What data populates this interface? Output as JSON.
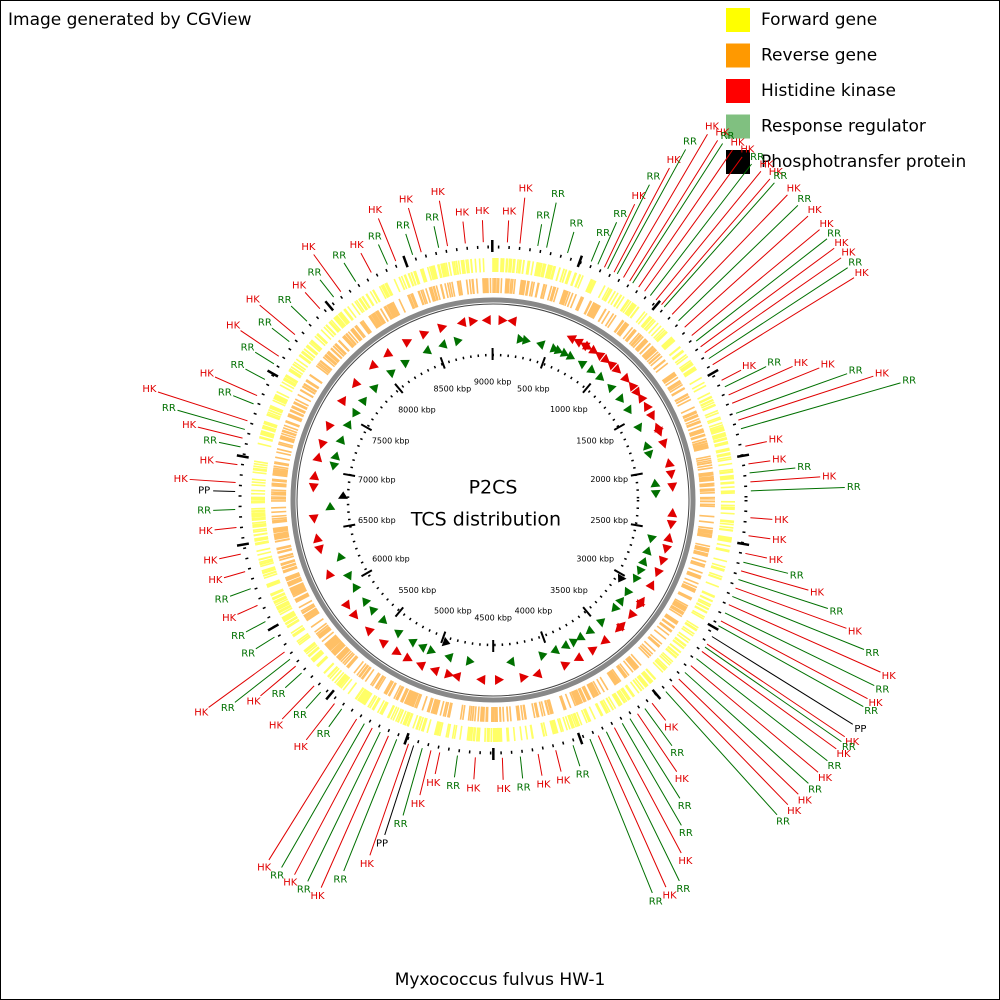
{
  "header": {
    "credit": "Image generated by CGView"
  },
  "legend": [
    {
      "label": "Forward gene",
      "color": "#ffff00"
    },
    {
      "label": "Reverse gene",
      "color": "#ff9900"
    },
    {
      "label": "Histidine kinase",
      "color": "#ff0000"
    },
    {
      "label": "Response regulator",
      "color": "#80c080"
    },
    {
      "label": "Phosphotransfer protein",
      "color": "#000000"
    }
  ],
  "center": {
    "title": "P2CS",
    "subtitle": "TCS distribution"
  },
  "caption": "Myxococcus fulvus HW-1",
  "genome_length_kbp": 9004,
  "ticks": [
    {
      "value": 500,
      "label": "500 kbp"
    },
    {
      "value": 1000,
      "label": "1000 kbp"
    },
    {
      "value": 1500,
      "label": "1500 kbp"
    },
    {
      "value": 2000,
      "label": "2000 kbp"
    },
    {
      "value": 2500,
      "label": "2500 kbp"
    },
    {
      "value": 3000,
      "label": "3000 kbp"
    },
    {
      "value": 3500,
      "label": "3500 kbp"
    },
    {
      "value": 4000,
      "label": "4000 kbp"
    },
    {
      "value": 4500,
      "label": "4500 kbp"
    },
    {
      "value": 5000,
      "label": "5000 kbp"
    },
    {
      "value": 5500,
      "label": "5500 kbp"
    },
    {
      "value": 6000,
      "label": "6000 kbp"
    },
    {
      "value": 6500,
      "label": "6500 kbp"
    },
    {
      "value": 7000,
      "label": "7000 kbp"
    },
    {
      "value": 7500,
      "label": "7500 kbp"
    },
    {
      "value": 8000,
      "label": "8000 kbp"
    },
    {
      "value": 8500,
      "label": "8500 kbp"
    },
    {
      "value": 9000,
      "label": "9000 kbp"
    }
  ],
  "features": [
    {
      "label": "HK",
      "kbp": 80,
      "strand": 1,
      "color": "#e00000"
    },
    {
      "label": "HK",
      "kbp": 150,
      "strand": -1,
      "color": "#e00000"
    },
    {
      "label": "RR",
      "kbp": 250,
      "strand": 1,
      "color": "#007000"
    },
    {
      "label": "RR",
      "kbp": 300,
      "strand": 1,
      "color": "#007000"
    },
    {
      "label": "RR",
      "kbp": 420,
      "strand": -1,
      "color": "#007000"
    },
    {
      "label": "RR",
      "kbp": 560,
      "strand": 1,
      "color": "#007000"
    },
    {
      "label": "RR",
      "kbp": 600,
      "strand": 1,
      "color": "#007000"
    },
    {
      "label": "HK",
      "kbp": 640,
      "strand": -1,
      "color": "#e00000"
    },
    {
      "label": "RR",
      "kbp": 660,
      "strand": 1,
      "color": "#007000"
    },
    {
      "label": "HK",
      "kbp": 700,
      "strand": -1,
      "color": "#e00000"
    },
    {
      "label": "RR",
      "kbp": 720,
      "strand": 1,
      "color": "#007000"
    },
    {
      "label": "HK",
      "kbp": 760,
      "strand": -1,
      "color": "#e00000"
    },
    {
      "label": "HK",
      "kbp": 800,
      "strand": 1,
      "color": "#e00000"
    },
    {
      "label": "RR",
      "kbp": 820,
      "strand": -1,
      "color": "#007000"
    },
    {
      "label": "HK",
      "kbp": 860,
      "strand": 1,
      "color": "#e00000"
    },
    {
      "label": "HK",
      "kbp": 900,
      "strand": -1,
      "color": "#e00000"
    },
    {
      "label": "RR",
      "kbp": 940,
      "strand": 1,
      "color": "#007000"
    },
    {
      "label": "HK",
      "kbp": 980,
      "strand": 1,
      "color": "#e00000"
    },
    {
      "label": "HK",
      "kbp": 1020,
      "strand": -1,
      "color": "#e00000"
    },
    {
      "label": "RR",
      "kbp": 1040,
      "strand": 1,
      "color": "#007000"
    },
    {
      "label": "HK",
      "kbp": 1100,
      "strand": 1,
      "color": "#e00000"
    },
    {
      "label": "RR",
      "kbp": 1150,
      "strand": -1,
      "color": "#007000"
    },
    {
      "label": "HK",
      "kbp": 1200,
      "strand": 1,
      "color": "#e00000"
    },
    {
      "label": "HK",
      "kbp": 1260,
      "strand": -1,
      "color": "#e00000"
    },
    {
      "label": "RR",
      "kbp": 1300,
      "strand": 1,
      "color": "#007000"
    },
    {
      "label": "HK",
      "kbp": 1340,
      "strand": 1,
      "color": "#e00000"
    },
    {
      "label": "HK",
      "kbp": 1380,
      "strand": -1,
      "color": "#e00000"
    },
    {
      "label": "RR",
      "kbp": 1420,
      "strand": 1,
      "color": "#007000"
    },
    {
      "label": "HK",
      "kbp": 1460,
      "strand": -1,
      "color": "#e00000"
    },
    {
      "label": "HK",
      "kbp": 1560,
      "strand": 1,
      "color": "#e00000"
    },
    {
      "label": "RR",
      "kbp": 1600,
      "strand": 1,
      "color": "#007000"
    },
    {
      "label": "HK",
      "kbp": 1650,
      "strand": -1,
      "color": "#e00000"
    },
    {
      "label": "HK",
      "kbp": 1700,
      "strand": 1,
      "color": "#e00000"
    },
    {
      "label": "RR",
      "kbp": 1760,
      "strand": -1,
      "color": "#007000"
    },
    {
      "label": "HK",
      "kbp": 1800,
      "strand": 1,
      "color": "#e00000"
    },
    {
      "label": "RR",
      "kbp": 1850,
      "strand": 1,
      "color": "#007000"
    },
    {
      "label": "HK",
      "kbp": 1950,
      "strand": -1,
      "color": "#e00000"
    },
    {
      "label": "HK",
      "kbp": 2050,
      "strand": 1,
      "color": "#e00000"
    },
    {
      "label": "RR",
      "kbp": 2100,
      "strand": -1,
      "color": "#007000"
    },
    {
      "label": "HK",
      "kbp": 2150,
      "strand": 1,
      "color": "#e00000"
    },
    {
      "label": "RR",
      "kbp": 2200,
      "strand": 1,
      "color": "#007000"
    },
    {
      "label": "HK",
      "kbp": 2350,
      "strand": -1,
      "color": "#e00000"
    },
    {
      "label": "HK",
      "kbp": 2450,
      "strand": 1,
      "color": "#e00000"
    },
    {
      "label": "HK",
      "kbp": 2550,
      "strand": -1,
      "color": "#e00000"
    },
    {
      "label": "RR",
      "kbp": 2600,
      "strand": 1,
      "color": "#007000"
    },
    {
      "label": "HK",
      "kbp": 2650,
      "strand": 1,
      "color": "#e00000"
    },
    {
      "label": "RR",
      "kbp": 2700,
      "strand": -1,
      "color": "#007000"
    },
    {
      "label": "HK",
      "kbp": 2750,
      "strand": 1,
      "color": "#e00000"
    },
    {
      "label": "RR",
      "kbp": 2800,
      "strand": -1,
      "color": "#007000"
    },
    {
      "label": "HK",
      "kbp": 2850,
      "strand": 1,
      "color": "#e00000"
    },
    {
      "label": "RR",
      "kbp": 2900,
      "strand": 1,
      "color": "#007000"
    },
    {
      "label": "HK",
      "kbp": 2950,
      "strand": -1,
      "color": "#e00000"
    },
    {
      "label": "RR",
      "kbp": 2980,
      "strand": 1,
      "color": "#007000"
    },
    {
      "label": "PP",
      "kbp": 3050,
      "strand": 1,
      "color": "#000000"
    },
    {
      "label": "HK",
      "kbp": 3100,
      "strand": -1,
      "color": "#e00000"
    },
    {
      "label": "RR",
      "kbp": 3120,
      "strand": 1,
      "color": "#007000"
    },
    {
      "label": "HK",
      "kbp": 3150,
      "strand": 1,
      "color": "#e00000"
    },
    {
      "label": "RR",
      "kbp": 3200,
      "strand": -1,
      "color": "#007000"
    },
    {
      "label": "HK",
      "kbp": 3250,
      "strand": 1,
      "color": "#e00000"
    },
    {
      "label": "RR",
      "kbp": 3300,
      "strand": 1,
      "color": "#007000"
    },
    {
      "label": "HK",
      "kbp": 3350,
      "strand": -1,
      "color": "#e00000"
    },
    {
      "label": "HK",
      "kbp": 3400,
      "strand": 1,
      "color": "#e00000"
    },
    {
      "label": "RR",
      "kbp": 3450,
      "strand": -1,
      "color": "#007000"
    },
    {
      "label": "HK",
      "kbp": 3550,
      "strand": 1,
      "color": "#e00000"
    },
    {
      "label": "RR",
      "kbp": 3600,
      "strand": 1,
      "color": "#007000"
    },
    {
      "label": "HK",
      "kbp": 3650,
      "strand": -1,
      "color": "#e00000"
    },
    {
      "label": "RR",
      "kbp": 3700,
      "strand": 1,
      "color": "#007000"
    },
    {
      "label": "RR",
      "kbp": 3750,
      "strand": -1,
      "color": "#007000"
    },
    {
      "label": "HK",
      "kbp": 3800,
      "strand": 1,
      "color": "#e00000"
    },
    {
      "label": "RR",
      "kbp": 3850,
      "strand": 1,
      "color": "#007000"
    },
    {
      "label": "HK",
      "kbp": 3900,
      "strand": -1,
      "color": "#e00000"
    },
    {
      "label": "RR",
      "kbp": 3950,
      "strand": 1,
      "color": "#007000"
    },
    {
      "label": "RR",
      "kbp": 4050,
      "strand": -1,
      "color": "#007000"
    },
    {
      "label": "HK",
      "kbp": 4150,
      "strand": 1,
      "color": "#e00000"
    },
    {
      "label": "HK",
      "kbp": 4250,
      "strand": -1,
      "color": "#e00000"
    },
    {
      "label": "RR",
      "kbp": 4350,
      "strand": 1,
      "color": "#007000"
    },
    {
      "label": "HK",
      "kbp": 4450,
      "strand": -1,
      "color": "#e00000"
    },
    {
      "label": "HK",
      "kbp": 4600,
      "strand": 1,
      "color": "#e00000"
    },
    {
      "label": "RR",
      "kbp": 4700,
      "strand": -1,
      "color": "#007000"
    },
    {
      "label": "HK",
      "kbp": 4800,
      "strand": 1,
      "color": "#e00000"
    },
    {
      "label": "HK",
      "kbp": 4850,
      "strand": -1,
      "color": "#e00000"
    },
    {
      "label": "RR",
      "kbp": 4900,
      "strand": 1,
      "color": "#007000"
    },
    {
      "label": "PP",
      "kbp": 4950,
      "strand": -1,
      "color": "#000000"
    },
    {
      "label": "HK",
      "kbp": 4980,
      "strand": 1,
      "color": "#e00000"
    },
    {
      "label": "RR",
      "kbp": 5050,
      "strand": -1,
      "color": "#007000"
    },
    {
      "label": "HK",
      "kbp": 5100,
      "strand": 1,
      "color": "#e00000"
    },
    {
      "label": "RR",
      "kbp": 5150,
      "strand": 1,
      "color": "#007000"
    },
    {
      "label": "HK",
      "kbp": 5200,
      "strand": -1,
      "color": "#e00000"
    },
    {
      "label": "RR",
      "kbp": 5250,
      "strand": 1,
      "color": "#007000"
    },
    {
      "label": "HK",
      "kbp": 5300,
      "strand": -1,
      "color": "#e00000"
    },
    {
      "label": "RR",
      "kbp": 5400,
      "strand": 1,
      "color": "#007000"
    },
    {
      "label": "HK",
      "kbp": 5450,
      "strand": 1,
      "color": "#e00000"
    },
    {
      "label": "RR",
      "kbp": 5550,
      "strand": -1,
      "color": "#007000"
    },
    {
      "label": "HK",
      "kbp": 5600,
      "strand": 1,
      "color": "#e00000"
    },
    {
      "label": "RR",
      "kbp": 5700,
      "strand": 1,
      "color": "#007000"
    },
    {
      "label": "HK",
      "kbp": 5750,
      "strand": -1,
      "color": "#e00000"
    },
    {
      "label": "RR",
      "kbp": 5800,
      "strand": 1,
      "color": "#007000"
    },
    {
      "label": "HK",
      "kbp": 5850,
      "strand": -1,
      "color": "#e00000"
    },
    {
      "label": "RR",
      "kbp": 5950,
      "strand": 1,
      "color": "#007000"
    },
    {
      "label": "RR",
      "kbp": 6050,
      "strand": -1,
      "color": "#007000"
    },
    {
      "label": "HK",
      "kbp": 6150,
      "strand": 1,
      "color": "#e00000"
    },
    {
      "label": "RR",
      "kbp": 6250,
      "strand": 1,
      "color": "#007000"
    },
    {
      "label": "HK",
      "kbp": 6350,
      "strand": -1,
      "color": "#e00000"
    },
    {
      "label": "HK",
      "kbp": 6450,
      "strand": 1,
      "color": "#e00000"
    },
    {
      "label": "HK",
      "kbp": 6600,
      "strand": -1,
      "color": "#e00000"
    },
    {
      "label": "RR",
      "kbp": 6700,
      "strand": 1,
      "color": "#007000"
    },
    {
      "label": "PP",
      "kbp": 6800,
      "strand": 1,
      "color": "#000000"
    },
    {
      "label": "HK",
      "kbp": 6850,
      "strand": -1,
      "color": "#e00000"
    },
    {
      "label": "HK",
      "kbp": 6950,
      "strand": 1,
      "color": "#e00000"
    },
    {
      "label": "RR",
      "kbp": 7050,
      "strand": -1,
      "color": "#007000"
    },
    {
      "label": "HK",
      "kbp": 7100,
      "strand": 1,
      "color": "#e00000"
    },
    {
      "label": "RR",
      "kbp": 7150,
      "strand": 1,
      "color": "#007000"
    },
    {
      "label": "HK",
      "kbp": 7200,
      "strand": -1,
      "color": "#e00000"
    },
    {
      "label": "RR",
      "kbp": 7300,
      "strand": 1,
      "color": "#007000"
    },
    {
      "label": "HK",
      "kbp": 7350,
      "strand": -1,
      "color": "#e00000"
    },
    {
      "label": "RR",
      "kbp": 7450,
      "strand": 1,
      "color": "#007000"
    },
    {
      "label": "RR",
      "kbp": 7550,
      "strand": -1,
      "color": "#007000"
    },
    {
      "label": "HK",
      "kbp": 7600,
      "strand": 1,
      "color": "#e00000"
    },
    {
      "label": "RR",
      "kbp": 7700,
      "strand": 1,
      "color": "#007000"
    },
    {
      "label": "HK",
      "kbp": 7750,
      "strand": -1,
      "color": "#e00000"
    },
    {
      "label": "RR",
      "kbp": 7850,
      "strand": 1,
      "color": "#007000"
    },
    {
      "label": "HK",
      "kbp": 7950,
      "strand": -1,
      "color": "#e00000"
    },
    {
      "label": "RR",
      "kbp": 8050,
      "strand": 1,
      "color": "#007000"
    },
    {
      "label": "HK",
      "kbp": 8100,
      "strand": -1,
      "color": "#e00000"
    },
    {
      "label": "RR",
      "kbp": 8200,
      "strand": 1,
      "color": "#007000"
    },
    {
      "label": "HK",
      "kbp": 8300,
      "strand": 1,
      "color": "#e00000"
    },
    {
      "label": "RR",
      "kbp": 8400,
      "strand": -1,
      "color": "#007000"
    },
    {
      "label": "HK",
      "kbp": 8450,
      "strand": 1,
      "color": "#e00000"
    },
    {
      "label": "RR",
      "kbp": 8550,
      "strand": -1,
      "color": "#007000"
    },
    {
      "label": "HK",
      "kbp": 8600,
      "strand": 1,
      "color": "#e00000"
    },
    {
      "label": "RR",
      "kbp": 8700,
      "strand": 1,
      "color": "#007000"
    },
    {
      "label": "HK",
      "kbp": 8750,
      "strand": -1,
      "color": "#e00000"
    },
    {
      "label": "HK",
      "kbp": 8850,
      "strand": 1,
      "color": "#e00000"
    },
    {
      "label": "HK",
      "kbp": 8950,
      "strand": -1,
      "color": "#e00000"
    }
  ]
}
